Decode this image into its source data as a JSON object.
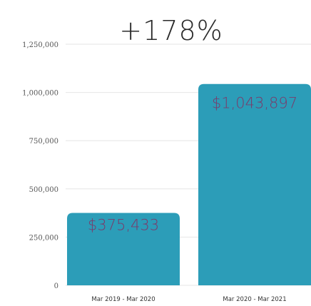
{
  "chart_data": {
    "type": "bar",
    "headline": "+178%",
    "categories": [
      "Mar 2019 - Mar 2020",
      "Mar 2020 - Mar 2021"
    ],
    "values": [
      375433,
      1043897
    ],
    "data_labels": [
      "$375,433",
      "$1,043,897"
    ],
    "yticks": [
      0,
      250000,
      500000,
      750000,
      1000000,
      1250000
    ],
    "ytick_labels": [
      "0",
      "250,000",
      "500,000",
      "750,000",
      "1,000,000",
      "1,250,000"
    ],
    "ylim": [
      0,
      1250000
    ],
    "grid": true,
    "colors": {
      "bar": "#2c9db8",
      "data_label": "#7b3a6a",
      "grid": "#e6e6e6"
    }
  }
}
